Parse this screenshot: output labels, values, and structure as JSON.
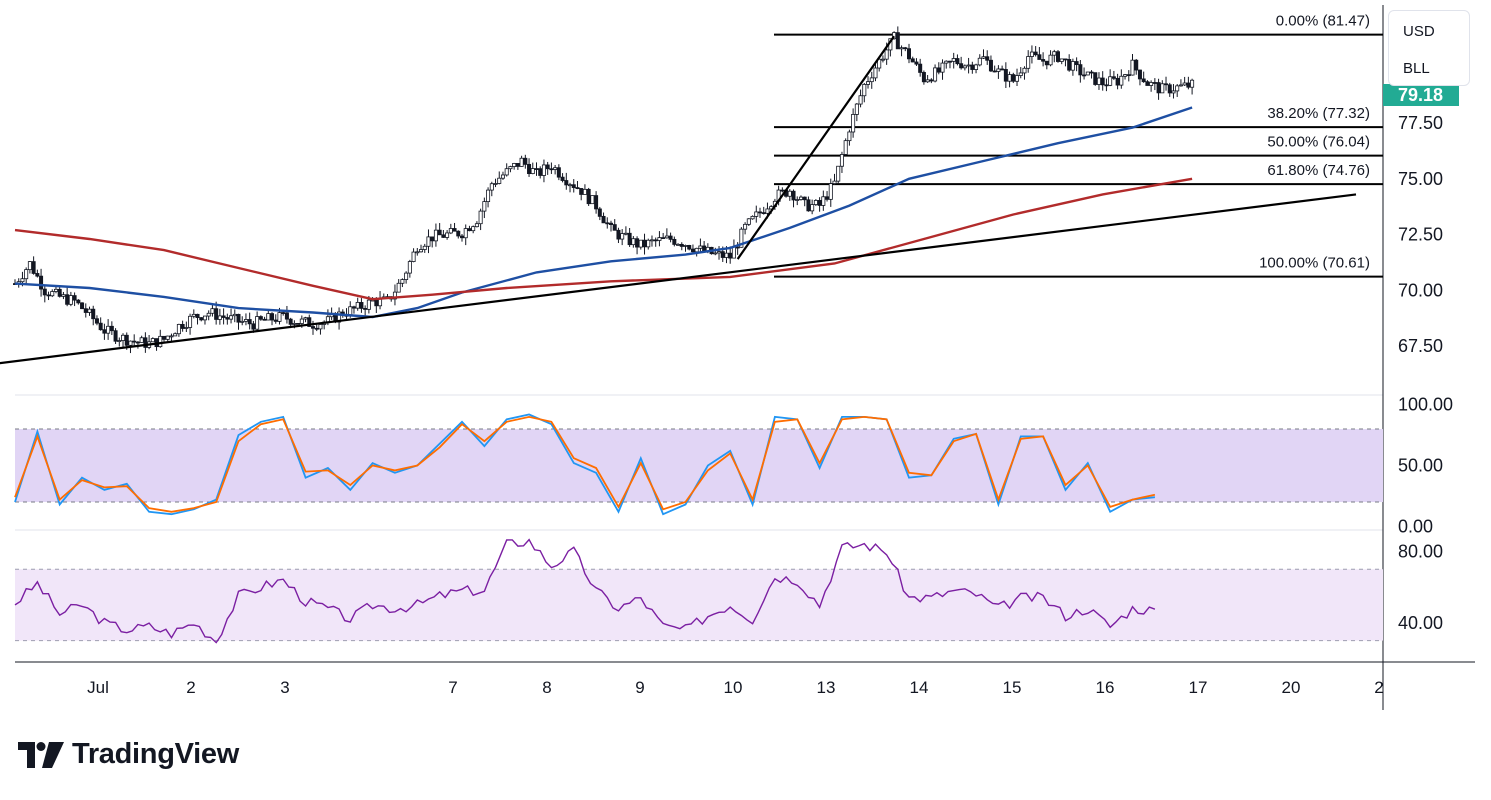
{
  "currency": "USD",
  "symbol": "BLL",
  "last_price": "79.18",
  "last_price_color": "#22ab94",
  "brand": "TradingView",
  "colors": {
    "candle_up": "#131722",
    "candle_down": "#131722",
    "ma_fast": "#1e4fa3",
    "ma_slow": "#b22b2b",
    "trendline": "#000000",
    "fib": "#000000",
    "stoch_k": "#2196f3",
    "stoch_d": "#ff6d00",
    "stoch_band": "#e1d5f5",
    "rsi_line": "#7b1fa2",
    "rsi_band": "#f1e6f9"
  },
  "chart_data": [
    {
      "type": "candlestick",
      "x_labels": [
        "Jul",
        "2",
        "3",
        "7",
        "8",
        "9",
        "10",
        "13",
        "14",
        "15",
        "16",
        "17",
        "20",
        "2"
      ],
      "y_ticks": [
        "77.50",
        "75.00",
        "72.50",
        "70.00",
        "67.50"
      ],
      "ylim": [
        65.3,
        82.8
      ],
      "close_path": [
        [
          0,
          70.3
        ],
        [
          2,
          71.2
        ],
        [
          4,
          70.0
        ],
        [
          6,
          69.7
        ],
        [
          8,
          69.5
        ],
        [
          10,
          68.9
        ],
        [
          12,
          68.2
        ],
        [
          14,
          67.9
        ],
        [
          16,
          67.7
        ],
        [
          18,
          67.6
        ],
        [
          20,
          67.8
        ],
        [
          22,
          68.4
        ],
        [
          24,
          68.8
        ],
        [
          26,
          69.0
        ],
        [
          28,
          68.8
        ],
        [
          30,
          68.6
        ],
        [
          32,
          68.5
        ],
        [
          34,
          68.7
        ],
        [
          36,
          68.8
        ],
        [
          38,
          68.6
        ],
        [
          40,
          68.5
        ],
        [
          42,
          68.6
        ],
        [
          44,
          69.0
        ],
        [
          46,
          69.2
        ],
        [
          48,
          69.5
        ],
        [
          50,
          69.5
        ],
        [
          52,
          70.5
        ],
        [
          54,
          72.0
        ],
        [
          56,
          72.4
        ],
        [
          58,
          72.5
        ],
        [
          60,
          72.6
        ],
        [
          62,
          73.2
        ],
        [
          64,
          74.8
        ],
        [
          66,
          75.3
        ],
        [
          68,
          75.8
        ],
        [
          70,
          75.2
        ],
        [
          72,
          75.6
        ],
        [
          74,
          75.0
        ],
        [
          76,
          74.5
        ],
        [
          78,
          73.8
        ],
        [
          80,
          72.7
        ],
        [
          82,
          72.3
        ],
        [
          84,
          72.0
        ],
        [
          86,
          72.2
        ],
        [
          88,
          72.3
        ],
        [
          90,
          72.1
        ],
        [
          92,
          71.8
        ],
        [
          94,
          71.6
        ],
        [
          96,
          71.5
        ],
        [
          98,
          72.8
        ],
        [
          100,
          73.5
        ],
        [
          102,
          74.2
        ],
        [
          104,
          74.5
        ],
        [
          106,
          73.8
        ],
        [
          108,
          73.8
        ],
        [
          110,
          74.8
        ],
        [
          112,
          77.3
        ],
        [
          114,
          79.2
        ],
        [
          116,
          80.3
        ],
        [
          118,
          81.3
        ],
        [
          120,
          80.5
        ],
        [
          122,
          79.5
        ],
        [
          124,
          79.8
        ],
        [
          126,
          80.3
        ],
        [
          128,
          80.1
        ],
        [
          130,
          80.4
        ],
        [
          132,
          79.8
        ],
        [
          134,
          79.4
        ],
        [
          136,
          80.5
        ],
        [
          138,
          80.3
        ],
        [
          140,
          80.5
        ],
        [
          142,
          80.0
        ],
        [
          144,
          79.6
        ],
        [
          146,
          79.3
        ],
        [
          148,
          79.4
        ],
        [
          150,
          80.1
        ],
        [
          152,
          79.3
        ],
        [
          154,
          79.0
        ],
        [
          156,
          79.1
        ],
        [
          158,
          79.2
        ]
      ],
      "series": [
        {
          "name": "",
          "kind": "moving-average",
          "values": [
            [
              0,
              70.3
            ],
            [
              10,
              70.1
            ],
            [
              20,
              69.7
            ],
            [
              30,
              69.2
            ],
            [
              40,
              69.0
            ],
            [
              48,
              68.8
            ],
            [
              54,
              69.2
            ],
            [
              60,
              69.9
            ],
            [
              70,
              70.8
            ],
            [
              80,
              71.3
            ],
            [
              90,
              71.6
            ],
            [
              96,
              71.9
            ],
            [
              104,
              72.8
            ],
            [
              112,
              73.8
            ],
            [
              120,
              75.0
            ],
            [
              130,
              75.8
            ],
            [
              140,
              76.6
            ],
            [
              150,
              77.3
            ],
            [
              158,
              78.2
            ]
          ]
        },
        {
          "name": "",
          "kind": "moving-average",
          "values": [
            [
              0,
              72.7
            ],
            [
              10,
              72.3
            ],
            [
              20,
              71.8
            ],
            [
              30,
              71.0
            ],
            [
              40,
              70.2
            ],
            [
              48,
              69.6
            ],
            [
              56,
              69.8
            ],
            [
              66,
              70.1
            ],
            [
              80,
              70.4
            ],
            [
              96,
              70.6
            ],
            [
              110,
              71.2
            ],
            [
              122,
              72.3
            ],
            [
              134,
              73.4
            ],
            [
              146,
              74.3
            ],
            [
              158,
              75.0
            ]
          ]
        }
      ],
      "trendlines": [
        {
          "from": [
            -10,
            66.4
          ],
          "to": [
            180,
            74.3
          ]
        },
        {
          "from": [
            97,
            71.4
          ],
          "to": [
            118,
            81.4
          ]
        }
      ],
      "fibonacci": [
        {
          "label": "0.00% (81.47)",
          "value": 81.47
        },
        {
          "label": "38.20% (77.32)",
          "value": 77.32
        },
        {
          "label": "50.00% (76.04)",
          "value": 76.04
        },
        {
          "label": "61.80% (74.76)",
          "value": 74.76
        },
        {
          "label": "100.00% (70.61)",
          "value": 70.61
        }
      ]
    },
    {
      "type": "line",
      "indicator": "stochastic",
      "y_ticks": [
        "100.00",
        "50.00",
        "0.00"
      ],
      "ylim": [
        -3,
        108
      ],
      "band": [
        20,
        80
      ],
      "series": [
        {
          "name": "",
          "values": [
            [
              0,
              20
            ],
            [
              3,
              78
            ],
            [
              6,
              18
            ],
            [
              9,
              40
            ],
            [
              12,
              30
            ],
            [
              15,
              35
            ],
            [
              18,
              12
            ],
            [
              21,
              10
            ],
            [
              24,
              14
            ],
            [
              27,
              22
            ],
            [
              30,
              75
            ],
            [
              33,
              86
            ],
            [
              36,
              90
            ],
            [
              39,
              40
            ],
            [
              42,
              48
            ],
            [
              45,
              30
            ],
            [
              48,
              52
            ],
            [
              51,
              44
            ],
            [
              54,
              50
            ],
            [
              57,
              68
            ],
            [
              60,
              86
            ],
            [
              63,
              66
            ],
            [
              66,
              88
            ],
            [
              69,
              92
            ],
            [
              72,
              84
            ],
            [
              75,
              52
            ],
            [
              78,
              44
            ],
            [
              81,
              12
            ],
            [
              84,
              56
            ],
            [
              87,
              10
            ],
            [
              90,
              18
            ],
            [
              93,
              50
            ],
            [
              96,
              62
            ],
            [
              99,
              18
            ],
            [
              102,
              90
            ],
            [
              105,
              88
            ],
            [
              108,
              48
            ],
            [
              111,
              90
            ],
            [
              114,
              90
            ],
            [
              117,
              88
            ],
            [
              120,
              40
            ],
            [
              123,
              42
            ],
            [
              126,
              72
            ],
            [
              129,
              76
            ],
            [
              132,
              18
            ],
            [
              135,
              74
            ],
            [
              138,
              74
            ],
            [
              141,
              30
            ],
            [
              144,
              52
            ],
            [
              147,
              12
            ],
            [
              150,
              22
            ],
            [
              153,
              24
            ]
          ]
        },
        {
          "name": "",
          "values": [
            [
              0,
              24
            ],
            [
              3,
              74
            ],
            [
              6,
              22
            ],
            [
              9,
              38
            ],
            [
              12,
              32
            ],
            [
              15,
              33
            ],
            [
              18,
              15
            ],
            [
              21,
              12
            ],
            [
              24,
              15
            ],
            [
              27,
              20
            ],
            [
              30,
              70
            ],
            [
              33,
              84
            ],
            [
              36,
              88
            ],
            [
              39,
              45
            ],
            [
              42,
              46
            ],
            [
              45,
              34
            ],
            [
              48,
              50
            ],
            [
              51,
              46
            ],
            [
              54,
              50
            ],
            [
              57,
              65
            ],
            [
              60,
              84
            ],
            [
              63,
              70
            ],
            [
              66,
              86
            ],
            [
              69,
              90
            ],
            [
              72,
              86
            ],
            [
              75,
              56
            ],
            [
              78,
              48
            ],
            [
              81,
              16
            ],
            [
              84,
              52
            ],
            [
              87,
              14
            ],
            [
              90,
              20
            ],
            [
              93,
              46
            ],
            [
              96,
              60
            ],
            [
              99,
              22
            ],
            [
              102,
              86
            ],
            [
              105,
              88
            ],
            [
              108,
              52
            ],
            [
              111,
              88
            ],
            [
              114,
              90
            ],
            [
              117,
              88
            ],
            [
              120,
              44
            ],
            [
              123,
              42
            ],
            [
              126,
              70
            ],
            [
              129,
              76
            ],
            [
              132,
              22
            ],
            [
              135,
              72
            ],
            [
              138,
              74
            ],
            [
              141,
              34
            ],
            [
              144,
              50
            ],
            [
              147,
              16
            ],
            [
              150,
              22
            ],
            [
              153,
              26
            ]
          ]
        }
      ]
    },
    {
      "type": "line",
      "indicator": "rsi",
      "y_ticks": [
        "80.00",
        "40.00"
      ],
      "ylim": [
        18,
        92
      ],
      "band": [
        30,
        70
      ],
      "series": [
        {
          "name": "",
          "values": [
            [
              0,
              51
            ],
            [
              3,
              62
            ],
            [
              6,
              45
            ],
            [
              9,
              50
            ],
            [
              12,
              40
            ],
            [
              15,
              36
            ],
            [
              18,
              38
            ],
            [
              21,
              34
            ],
            [
              24,
              40
            ],
            [
              27,
              30
            ],
            [
              30,
              55
            ],
            [
              33,
              60
            ],
            [
              36,
              64
            ],
            [
              39,
              52
            ],
            [
              42,
              48
            ],
            [
              45,
              42
            ],
            [
              48,
              50
            ],
            [
              51,
              48
            ],
            [
              54,
              50
            ],
            [
              57,
              55
            ],
            [
              60,
              58
            ],
            [
              63,
              58
            ],
            [
              66,
              84
            ],
            [
              69,
              86
            ],
            [
              72,
              72
            ],
            [
              75,
              80
            ],
            [
              78,
              58
            ],
            [
              81,
              48
            ],
            [
              84,
              54
            ],
            [
              87,
              38
            ],
            [
              90,
              36
            ],
            [
              93,
              44
            ],
            [
              96,
              50
            ],
            [
              99,
              42
            ],
            [
              102,
              66
            ],
            [
              105,
              64
            ],
            [
              108,
              50
            ],
            [
              111,
              82
            ],
            [
              114,
              84
            ],
            [
              117,
              80
            ],
            [
              120,
              54
            ],
            [
              123,
              54
            ],
            [
              126,
              58
            ],
            [
              129,
              56
            ],
            [
              132,
              48
            ],
            [
              135,
              54
            ],
            [
              138,
              54
            ],
            [
              141,
              44
            ],
            [
              144,
              48
            ],
            [
              147,
              38
            ],
            [
              150,
              48
            ],
            [
              153,
              47
            ]
          ]
        }
      ]
    }
  ]
}
